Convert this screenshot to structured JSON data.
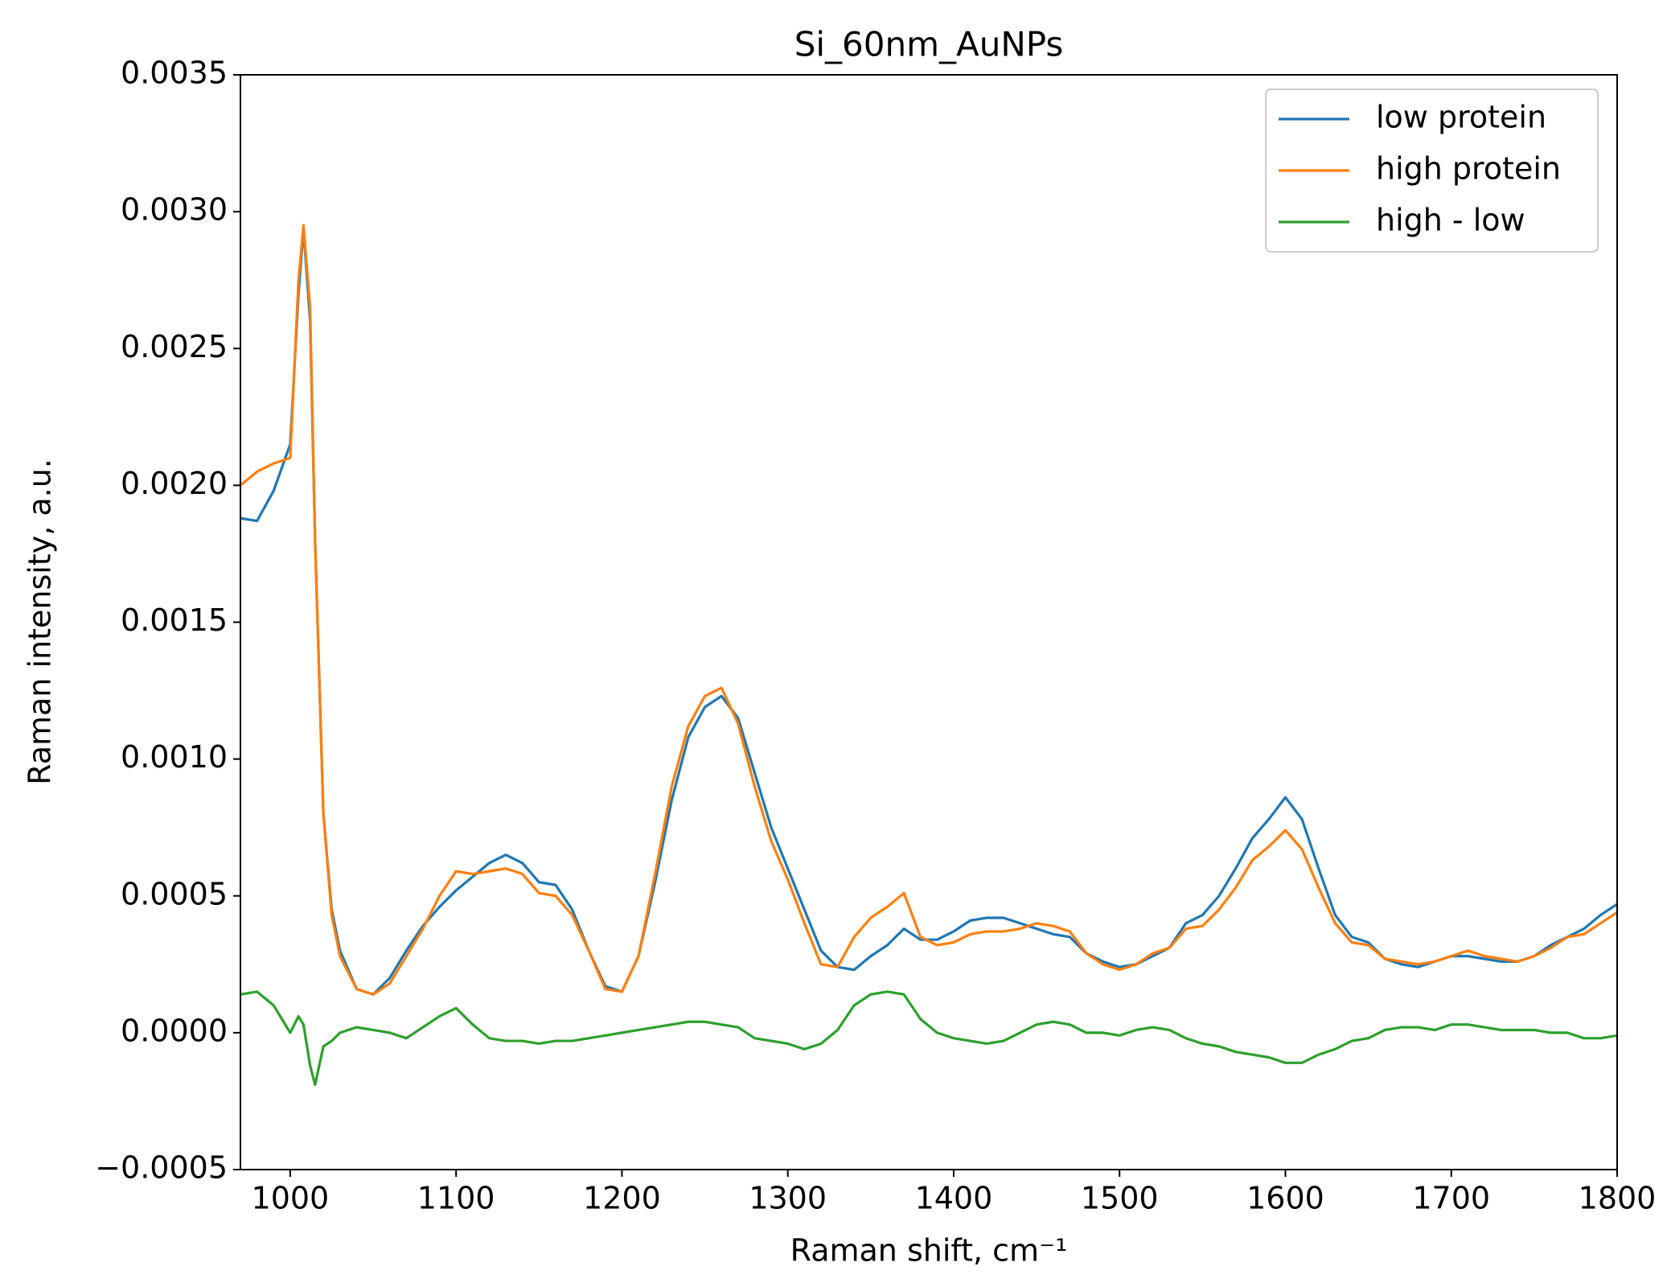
{
  "chart_data": {
    "type": "line",
    "title": "Si_60nm_AuNPs",
    "x_label": "Raman shift, cm⁻¹",
    "y_label": "Raman intensity, a.u.",
    "x": [
      970,
      980,
      990,
      1000,
      1005,
      1008,
      1012,
      1015,
      1020,
      1025,
      1030,
      1040,
      1050,
      1060,
      1070,
      1080,
      1090,
      1100,
      1110,
      1120,
      1130,
      1140,
      1150,
      1160,
      1170,
      1180,
      1190,
      1200,
      1210,
      1220,
      1230,
      1240,
      1250,
      1260,
      1270,
      1280,
      1290,
      1300,
      1310,
      1320,
      1330,
      1340,
      1350,
      1360,
      1370,
      1380,
      1390,
      1400,
      1410,
      1420,
      1430,
      1440,
      1450,
      1460,
      1470,
      1480,
      1490,
      1500,
      1510,
      1520,
      1530,
      1540,
      1550,
      1560,
      1570,
      1580,
      1590,
      1600,
      1610,
      1620,
      1630,
      1640,
      1650,
      1660,
      1670,
      1680,
      1690,
      1700,
      1710,
      1720,
      1730,
      1740,
      1750,
      1760,
      1770,
      1780,
      1790,
      1800
    ],
    "series": [
      {
        "name": "low protein",
        "color": "#1f77b4",
        "values": [
          0.00188,
          0.00187,
          0.00198,
          0.00215,
          0.0027,
          0.00294,
          0.0026,
          0.0018,
          0.0008,
          0.00045,
          0.0003,
          0.00016,
          0.00014,
          0.0002,
          0.0003,
          0.00039,
          0.00046,
          0.00052,
          0.00057,
          0.00062,
          0.00065,
          0.00062,
          0.00055,
          0.00054,
          0.00045,
          0.0003,
          0.00017,
          0.00015,
          0.00028,
          0.00055,
          0.00085,
          0.00108,
          0.00119,
          0.00123,
          0.00115,
          0.00095,
          0.00075,
          0.0006,
          0.00045,
          0.0003,
          0.00024,
          0.00023,
          0.00028,
          0.00032,
          0.00038,
          0.00034,
          0.00034,
          0.00037,
          0.00041,
          0.00042,
          0.00042,
          0.0004,
          0.00038,
          0.00036,
          0.00035,
          0.00029,
          0.00026,
          0.00024,
          0.00025,
          0.00028,
          0.00031,
          0.0004,
          0.00043,
          0.0005,
          0.0006,
          0.00071,
          0.00078,
          0.00086,
          0.00078,
          0.0006,
          0.00043,
          0.00035,
          0.00033,
          0.00027,
          0.00025,
          0.00024,
          0.00026,
          0.00028,
          0.00028,
          0.00027,
          0.00026,
          0.00026,
          0.00028,
          0.00032,
          0.00035,
          0.00038,
          0.00043,
          0.00047
        ]
      },
      {
        "name": "high protein",
        "color": "#ff7f0e",
        "values": [
          0.002,
          0.00205,
          0.00208,
          0.0021,
          0.00275,
          0.00295,
          0.00265,
          0.0018,
          0.0008,
          0.00043,
          0.00028,
          0.00016,
          0.00014,
          0.00018,
          0.00028,
          0.00038,
          0.0005,
          0.00059,
          0.00058,
          0.00059,
          0.0006,
          0.00058,
          0.00051,
          0.0005,
          0.00043,
          0.0003,
          0.00016,
          0.00015,
          0.00028,
          0.00058,
          0.0009,
          0.00112,
          0.00123,
          0.00126,
          0.00113,
          0.0009,
          0.0007,
          0.00056,
          0.0004,
          0.00025,
          0.00024,
          0.00035,
          0.00042,
          0.00046,
          0.00051,
          0.00035,
          0.00032,
          0.00033,
          0.00036,
          0.00037,
          0.00037,
          0.00038,
          0.0004,
          0.00039,
          0.00037,
          0.00029,
          0.00025,
          0.00023,
          0.00025,
          0.00029,
          0.00031,
          0.00038,
          0.00039,
          0.00045,
          0.00053,
          0.00063,
          0.00068,
          0.00074,
          0.00067,
          0.00053,
          0.0004,
          0.00033,
          0.00032,
          0.00027,
          0.00026,
          0.00025,
          0.00026,
          0.00028,
          0.0003,
          0.00028,
          0.00027,
          0.00026,
          0.00028,
          0.00031,
          0.00035,
          0.00036,
          0.0004,
          0.00044
        ]
      },
      {
        "name": "high - low",
        "color": "#2ca02c",
        "values": [
          0.00014,
          0.00015,
          0.0001,
          0,
          6e-05,
          3e-05,
          -0.00012,
          -0.00019,
          -5e-05,
          -3e-05,
          0,
          2e-05,
          1e-05,
          0,
          -2e-05,
          2e-05,
          6e-05,
          9e-05,
          3e-05,
          -2e-05,
          -3e-05,
          -3e-05,
          -4e-05,
          -3e-05,
          -3e-05,
          -2e-05,
          -1e-05,
          0,
          1e-05,
          2e-05,
          3e-05,
          4e-05,
          4e-05,
          3e-05,
          2e-05,
          -2e-05,
          -3e-05,
          -4e-05,
          -6e-05,
          -4e-05,
          1e-05,
          0.0001,
          0.00014,
          0.00015,
          0.00014,
          5e-05,
          0,
          -2e-05,
          -3e-05,
          -4e-05,
          -3e-05,
          0,
          3e-05,
          4e-05,
          3e-05,
          0,
          0,
          -1e-05,
          1e-05,
          2e-05,
          1e-05,
          -2e-05,
          -4e-05,
          -5e-05,
          -7e-05,
          -8e-05,
          -9e-05,
          -0.00011,
          -0.00011,
          -8e-05,
          -6e-05,
          -3e-05,
          -2e-05,
          1e-05,
          2e-05,
          2e-05,
          1e-05,
          3e-05,
          3e-05,
          2e-05,
          1e-05,
          1e-05,
          1e-05,
          0,
          0,
          -2e-05,
          -2e-05,
          -1e-05
        ]
      }
    ],
    "xlim": [
      970,
      1800
    ],
    "xticks": [
      1000,
      1100,
      1200,
      1300,
      1400,
      1500,
      1600,
      1700,
      1800
    ],
    "ylim": [
      -0.0005,
      0.0035
    ],
    "yticks": [
      {
        "value": -0.0005,
        "label": "−0.0005"
      },
      {
        "value": 0,
        "label": "0.0000"
      },
      0.0005,
      {
        "value": 0.001,
        "label": "0.0010"
      },
      0.0015,
      {
        "value": 0.002,
        "label": "0.0020"
      },
      0.0025,
      {
        "value": 0.003,
        "label": "0.0030"
      },
      0.0035
    ],
    "grid": false,
    "legend": "upper right"
  }
}
